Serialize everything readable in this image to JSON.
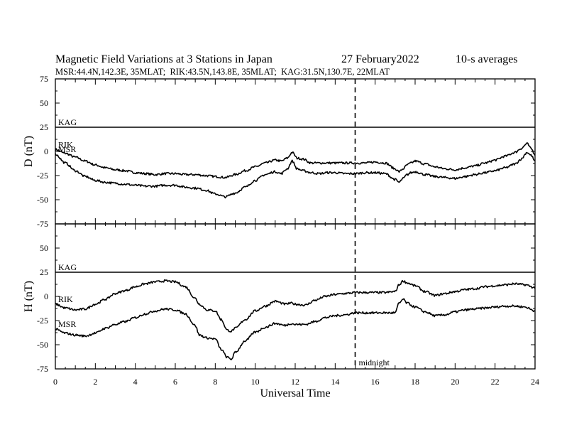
{
  "chart_data": {
    "type": "line",
    "title": "Magnetic Field Variations at 3 Stations in Japan",
    "date": "27 February2022",
    "averaging": "10-s averages",
    "subtitle": "MSR:44.4N,142.3E, 35MLAT;  RIK:43.5N,143.8E, 35MLAT;  KAG:31.5N,130.7E, 22MLAT",
    "xlabel": "Universal Time",
    "xlim": [
      0,
      24
    ],
    "xticks": [
      "0",
      "2",
      "4",
      "6",
      "8",
      "10",
      "12",
      "14",
      "16",
      "18",
      "20",
      "22",
      "24"
    ],
    "ylim": [
      -75,
      75
    ],
    "yticks": [
      "-75",
      "-50",
      "-25",
      "0",
      "25",
      "50",
      "75"
    ],
    "midnight_ut": 15,
    "midnight_label": "midnight",
    "panels": [
      {
        "ylabel": "D (nT)",
        "series": [
          {
            "name": "KAG",
            "x": [
              0,
              24
            ],
            "values": [
              25,
              25
            ]
          },
          {
            "name": "RIK",
            "x": [
              0,
              0.5,
              1,
              1.5,
              2,
              2.5,
              3,
              3.5,
              4,
              4.5,
              5,
              5.5,
              6,
              6.5,
              7,
              7.5,
              8,
              8.5,
              9,
              9.5,
              10,
              10.5,
              11,
              11.3,
              11.6,
              11.85,
              12.1,
              12.4,
              12.8,
              13.2,
              13.6,
              14,
              14.5,
              15,
              15.5,
              16,
              16.5,
              17,
              17.2,
              17.4,
              17.6,
              17.8,
              18,
              18.5,
              19,
              19.5,
              20,
              20.5,
              21,
              21.5,
              22,
              22.5,
              23,
              23.3,
              23.6,
              23.8,
              24
            ],
            "values": [
              2,
              -2,
              -6,
              -10,
              -14,
              -17,
              -19,
              -20,
              -22,
              -23,
              -24,
              -23,
              -23,
              -24,
              -24,
              -25,
              -26,
              -27,
              -24,
              -20,
              -16,
              -12,
              -9,
              -10,
              -7,
              -1,
              -7,
              -8,
              -12,
              -12,
              -12,
              -12,
              -12,
              -12,
              -12,
              -11,
              -12,
              -18,
              -21,
              -18,
              -14,
              -12,
              -10,
              -13,
              -16,
              -18,
              -19,
              -17,
              -15,
              -12,
              -9,
              -5,
              -1,
              3,
              8,
              3,
              -3
            ]
          },
          {
            "name": "MSR",
            "x": [
              0,
              0.5,
              1,
              1.5,
              2,
              2.5,
              3,
              3.5,
              4,
              4.5,
              5,
              5.5,
              6,
              6.5,
              7,
              7.5,
              8,
              8.5,
              9,
              9.5,
              10,
              10.5,
              11,
              11.3,
              11.6,
              11.85,
              12.1,
              12.4,
              12.8,
              13.2,
              13.6,
              14,
              14.5,
              15,
              15.5,
              16,
              16.5,
              17,
              17.2,
              17.4,
              17.6,
              17.8,
              18,
              18.5,
              19,
              19.5,
              20,
              20.5,
              21,
              21.5,
              22,
              22.5,
              23,
              23.3,
              23.6,
              23.8,
              24
            ],
            "values": [
              -3,
              -12,
              -20,
              -26,
              -30,
              -32,
              -33,
              -34,
              -35,
              -36,
              -36,
              -35,
              -35,
              -37,
              -38,
              -40,
              -44,
              -47,
              -43,
              -37,
              -30,
              -24,
              -21,
              -23,
              -18,
              -10,
              -18,
              -20,
              -22,
              -23,
              -22,
              -22,
              -23,
              -23,
              -22,
              -22,
              -23,
              -29,
              -32,
              -28,
              -24,
              -22,
              -21,
              -24,
              -26,
              -27,
              -28,
              -26,
              -24,
              -22,
              -20,
              -17,
              -13,
              -8,
              -1,
              -4,
              -10
            ]
          }
        ]
      },
      {
        "ylabel": "H (nT)",
        "series": [
          {
            "name": "KAG",
            "x": [
              0,
              24
            ],
            "values": [
              25,
              25
            ]
          },
          {
            "name": "RIK",
            "x": [
              0,
              0.5,
              1,
              1.5,
              2,
              2.5,
              3,
              3.5,
              4,
              4.5,
              5,
              5.5,
              6,
              6.5,
              7,
              7.2,
              7.6,
              8,
              8.3,
              8.6,
              8.8,
              9,
              9.5,
              10,
              10.5,
              11,
              11.5,
              11.8,
              12,
              12.5,
              13,
              13.5,
              14,
              14.5,
              15,
              15.5,
              16,
              16.5,
              17,
              17.2,
              17.4,
              17.6,
              18,
              18.5,
              19,
              19.5,
              20,
              20.5,
              21,
              21.5,
              22,
              22.5,
              23,
              23.5,
              24
            ],
            "values": [
              -8,
              -12,
              -14,
              -13,
              -8,
              -3,
              3,
              6,
              10,
              13,
              15,
              16,
              15,
              10,
              -2,
              -8,
              -14,
              -15,
              -24,
              -35,
              -36,
              -33,
              -24,
              -15,
              -10,
              -5,
              -8,
              -7,
              -8,
              -9,
              -4,
              0,
              2,
              3,
              4,
              4,
              4,
              4,
              5,
              12,
              16,
              14,
              11,
              5,
              1,
              3,
              5,
              7,
              8,
              10,
              11,
              12,
              13,
              12,
              9
            ]
          },
          {
            "name": "MSR",
            "x": [
              0,
              0.5,
              1,
              1.5,
              2,
              2.5,
              3,
              3.5,
              4,
              4.5,
              5,
              5.5,
              6,
              6.5,
              7,
              7.2,
              7.6,
              8,
              8.3,
              8.6,
              8.8,
              9,
              9.5,
              10,
              10.5,
              11,
              11.5,
              11.8,
              12,
              12.5,
              13,
              13.5,
              14,
              14.5,
              15,
              15.5,
              16,
              16.5,
              17,
              17.2,
              17.4,
              17.6,
              18,
              18.5,
              19,
              19.5,
              20,
              20.5,
              21,
              21.5,
              22,
              22.5,
              23,
              23.5,
              24
            ],
            "values": [
              -34,
              -38,
              -40,
              -41,
              -38,
              -33,
              -29,
              -26,
              -22,
              -18,
              -15,
              -13,
              -14,
              -18,
              -30,
              -40,
              -43,
              -44,
              -55,
              -63,
              -65,
              -58,
              -46,
              -37,
              -32,
              -28,
              -30,
              -28,
              -29,
              -29,
              -26,
              -22,
              -20,
              -19,
              -17,
              -17,
              -17,
              -17,
              -17,
              -7,
              -3,
              -7,
              -11,
              -16,
              -20,
              -19,
              -16,
              -14,
              -13,
              -12,
              -11,
              -10,
              -10,
              -11,
              -15
            ]
          }
        ]
      }
    ]
  }
}
